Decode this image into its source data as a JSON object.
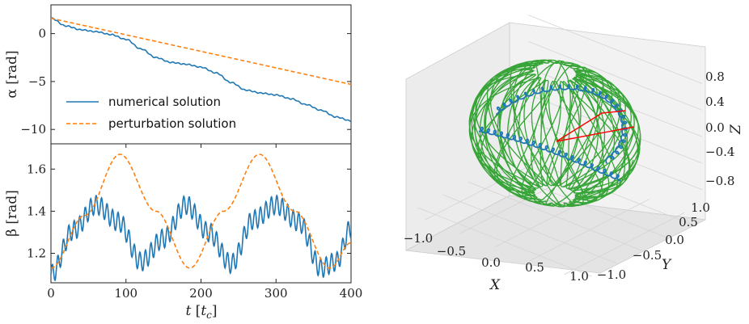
{
  "chart_data": [
    {
      "type": "line",
      "panel": "top-left",
      "ylabel": "α [rad]",
      "xlim": [
        0,
        400
      ],
      "ylim": [
        -11.5,
        3
      ],
      "yticks": [
        "0",
        "−5",
        "−10"
      ],
      "ytick_values": [
        0,
        -5,
        -10
      ],
      "legend": {
        "placement": "lower-left",
        "entries": [
          "numerical solution",
          "perturbation solution"
        ]
      },
      "series": [
        {
          "name": "numerical solution",
          "color": "#1f77b4",
          "style": "solid",
          "x": [
            0,
            20,
            40,
            60,
            80,
            100,
            120,
            140,
            160,
            180,
            200,
            220,
            240,
            260,
            280,
            300,
            320,
            340,
            360,
            380,
            400
          ],
          "values": [
            1.6,
            0.8,
            0.4,
            0.2,
            -0.1,
            -0.6,
            -1.6,
            -2.5,
            -3.0,
            -3.2,
            -3.5,
            -4.1,
            -5.1,
            -5.9,
            -6.2,
            -6.4,
            -6.8,
            -7.4,
            -8.0,
            -8.7,
            -9.1
          ]
        },
        {
          "name": "perturbation solution",
          "color": "#ff7f0e",
          "style": "dashed",
          "x": [
            0,
            400
          ],
          "values": [
            1.6,
            -5.3
          ]
        }
      ]
    },
    {
      "type": "line",
      "panel": "bottom-left",
      "xlabel": "t [t_c]",
      "xlabel_main": "t",
      "xlabel_unit": "c",
      "ylabel": "β [rad]",
      "xlim": [
        0,
        400
      ],
      "ylim": [
        1.06,
        1.72
      ],
      "xticks": [
        "0",
        "100",
        "200",
        "300",
        "400"
      ],
      "xtick_values": [
        0,
        100,
        200,
        300,
        400
      ],
      "yticks": [
        "1.2",
        "1.4",
        "1.6"
      ],
      "ytick_values": [
        1.2,
        1.4,
        1.6
      ],
      "series": [
        {
          "name": "numerical solution",
          "color": "#1f77b4",
          "style": "solid",
          "x": [
            0,
            30,
            60,
            90,
            120,
            150,
            180,
            210,
            240,
            270,
            300,
            330,
            360,
            380,
            400
          ],
          "values": [
            1.1,
            1.31,
            1.43,
            1.35,
            1.16,
            1.27,
            1.43,
            1.3,
            1.15,
            1.36,
            1.43,
            1.35,
            1.13,
            1.16,
            1.32
          ],
          "oscillation": {
            "amplitude": 0.045,
            "period": 7.3
          }
        },
        {
          "name": "perturbation solution",
          "color": "#ff7f0e",
          "style": "dashed",
          "x": [
            0,
            45,
            92,
            140,
            185,
            230,
            278,
            325,
            372,
            400
          ],
          "values": [
            1.13,
            1.38,
            1.67,
            1.4,
            1.13,
            1.4,
            1.67,
            1.4,
            1.13,
            1.25
          ]
        }
      ]
    },
    {
      "type": "3d-line",
      "panel": "right",
      "xlabel": "X",
      "ylabel": "Y",
      "zlabel": "Z",
      "xticks": [
        "−1.0",
        "−0.5",
        "0.0",
        "0.5",
        "1.0"
      ],
      "yticks": [
        "−1.0",
        "−0.5",
        "0.0",
        "0.5",
        "1.0"
      ],
      "zticks": [
        "−0.8",
        "−0.4",
        "0.0",
        "0.4",
        "0.8"
      ],
      "xlim": [
        -1,
        1
      ],
      "ylim": [
        -1,
        1
      ],
      "zlim": [
        -1,
        1
      ],
      "series": [
        {
          "name": "trajectory on sphere",
          "color": "#2ca02c"
        },
        {
          "name": "guiding-center track",
          "color": "#1f77b4"
        },
        {
          "name": "vectors",
          "color": "#ff0000"
        }
      ]
    }
  ]
}
